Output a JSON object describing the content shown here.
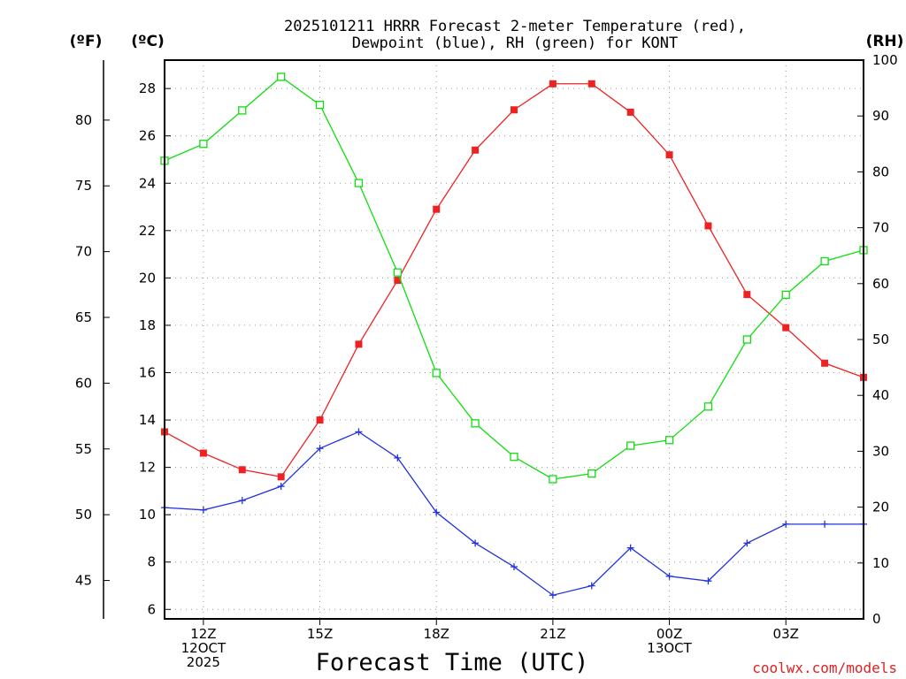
{
  "title_line1": "2025101211 HRRR Forecast 2-meter Temperature (red),",
  "title_line2": "Dewpoint (blue), RH (green) for KONT",
  "credit": "coolwx.com/models",
  "colors": {
    "temperature": "#ee2222",
    "dewpoint": "#2233dd",
    "rh": "#11dd11",
    "credit": "#dd2222"
  },
  "chart_data": {
    "type": "line",
    "title": "2025101211 HRRR Forecast 2-meter Temperature (red), Dewpoint (blue), RH (green) for KONT",
    "xlabel": "Forecast Time (UTC)",
    "x_hours": [
      11,
      12,
      13,
      14,
      15,
      16,
      17,
      18,
      19,
      20,
      21,
      22,
      23,
      24,
      25,
      26,
      27,
      28,
      29
    ],
    "x_ticks": [
      {
        "hour": 12,
        "lines": [
          "12Z",
          "12OCT",
          "2025"
        ]
      },
      {
        "hour": 15,
        "lines": [
          "15Z"
        ]
      },
      {
        "hour": 18,
        "lines": [
          "18Z"
        ]
      },
      {
        "hour": 21,
        "lines": [
          "21Z"
        ]
      },
      {
        "hour": 24,
        "lines": [
          "00Z",
          "13OCT"
        ]
      },
      {
        "hour": 27,
        "lines": [
          "03Z"
        ]
      }
    ],
    "xlim": [
      11,
      29
    ],
    "axis_units": {
      "fahrenheit": "(ºF)",
      "celsius": "(ºC)",
      "rh": "(RH)"
    },
    "ylim_celsius": [
      5.6,
      29.2
    ],
    "yticks_celsius": [
      6,
      8,
      10,
      12,
      14,
      16,
      18,
      20,
      22,
      24,
      26,
      28
    ],
    "yticks_fahrenheit": [
      45,
      50,
      55,
      60,
      65,
      70,
      75,
      80
    ],
    "ylim_rh": [
      0,
      100
    ],
    "yticks_rh": [
      0,
      10,
      20,
      30,
      40,
      50,
      60,
      70,
      80,
      90,
      100
    ],
    "series": [
      {
        "name": "Temperature",
        "units": "C",
        "marker": "filled-square",
        "values": [
          13.5,
          12.6,
          11.9,
          11.6,
          14.0,
          17.2,
          19.9,
          22.9,
          25.4,
          27.1,
          28.2,
          28.2,
          27.0,
          25.2,
          22.2,
          19.3,
          17.9,
          16.4,
          15.8
        ]
      },
      {
        "name": "Dewpoint",
        "units": "C",
        "marker": "plus",
        "values": [
          10.3,
          10.2,
          10.6,
          11.2,
          12.8,
          13.5,
          12.4,
          10.1,
          8.8,
          7.8,
          6.6,
          7.0,
          8.6,
          7.4,
          7.2,
          8.8,
          9.6,
          9.6,
          9.6
        ]
      },
      {
        "name": "RH",
        "units": "%",
        "marker": "open-square",
        "values": [
          82,
          85,
          91,
          97,
          92,
          78,
          62,
          44,
          35,
          29,
          25,
          26,
          31,
          32,
          38,
          50,
          58,
          64,
          66
        ]
      }
    ]
  }
}
